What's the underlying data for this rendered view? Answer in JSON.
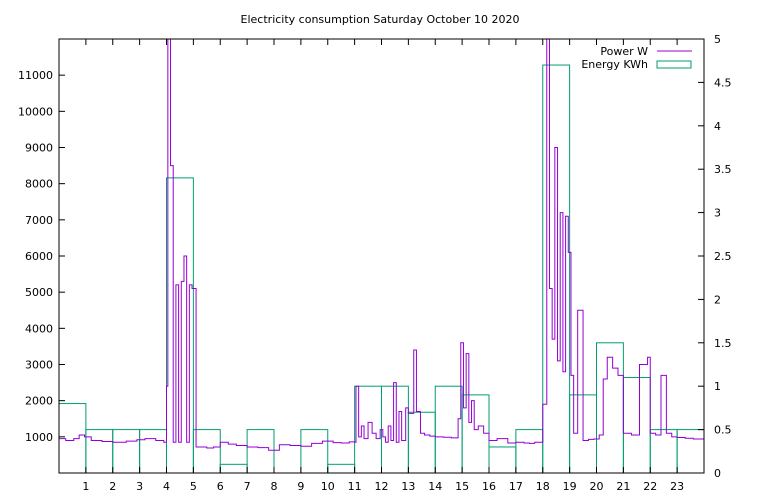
{
  "chart_data": {
    "type": "bar",
    "title": "Electricity consumption Saturday October 10 2020",
    "xlabel": "",
    "ylabel": "",
    "x_ticks": [
      "1",
      "2",
      "3",
      "4",
      "5",
      "6",
      "7",
      "8",
      "9",
      "10",
      "11",
      "12",
      "13",
      "14",
      "15",
      "16",
      "17",
      "18",
      "19",
      "20",
      "21",
      "22",
      "23"
    ],
    "xlim": [
      0,
      24
    ],
    "y_left": {
      "ticks": [
        "1000",
        "2000",
        "3000",
        "4000",
        "5000",
        "6000",
        "7000",
        "8000",
        "9000",
        "10000",
        "11000"
      ],
      "ylim": [
        0,
        12000
      ]
    },
    "y_right": {
      "ticks": [
        "0",
        "0.5",
        "1",
        "1.5",
        "2",
        "2.5",
        "3",
        "3.5",
        "4",
        "4.5",
        "5"
      ],
      "ylim": [
        0,
        5
      ]
    },
    "legend_position": "top-right",
    "colors": {
      "power": "#9400d3",
      "energy": "#009e73"
    },
    "series": [
      {
        "name": "Power W",
        "style": "steps",
        "axis": "left",
        "x": [
          0,
          0.25,
          0.55,
          0.75,
          0.95,
          1.2,
          1.6,
          2.0,
          2.5,
          2.9,
          3.2,
          3.6,
          3.9,
          4.0,
          4.05,
          4.15,
          4.25,
          4.35,
          4.45,
          4.55,
          4.65,
          4.75,
          4.85,
          4.95,
          5.1,
          5.5,
          5.75,
          6.0,
          6.3,
          6.6,
          7.0,
          7.4,
          7.8,
          8.2,
          8.6,
          9.0,
          9.4,
          9.8,
          10.2,
          10.5,
          10.8,
          11.0,
          11.05,
          11.15,
          11.25,
          11.35,
          11.5,
          11.65,
          11.8,
          11.95,
          12.05,
          12.15,
          12.25,
          12.35,
          12.45,
          12.55,
          12.65,
          12.75,
          12.9,
          13.0,
          13.1,
          13.2,
          13.3,
          13.45,
          13.6,
          13.8,
          14.0,
          14.3,
          14.6,
          14.85,
          14.95,
          15.05,
          15.15,
          15.25,
          15.35,
          15.45,
          15.6,
          15.8,
          16.0,
          16.3,
          16.7,
          17.0,
          17.3,
          17.5,
          17.7,
          18.0,
          18.15,
          18.25,
          18.35,
          18.45,
          18.55,
          18.65,
          18.75,
          18.85,
          18.95,
          19.05,
          19.15,
          19.3,
          19.5,
          19.7,
          19.9,
          20.1,
          20.25,
          20.4,
          20.6,
          20.8,
          21.0,
          21.3,
          21.6,
          21.9,
          22.0,
          22.2,
          22.4,
          22.6,
          22.8,
          23.0,
          23.3,
          23.6,
          24.0
        ],
        "values": [
          950,
          900,
          950,
          1050,
          1000,
          900,
          870,
          850,
          880,
          920,
          950,
          900,
          850,
          2400,
          12000,
          8500,
          850,
          5200,
          850,
          5300,
          6000,
          850,
          5200,
          5100,
          720,
          690,
          720,
          850,
          800,
          760,
          720,
          700,
          630,
          780,
          760,
          740,
          820,
          880,
          840,
          830,
          860,
          850,
          2400,
          1000,
          1300,
          950,
          1400,
          1100,
          950,
          1200,
          1000,
          850,
          1300,
          900,
          2500,
          850,
          1700,
          900,
          1800,
          1650,
          1650,
          3400,
          1700,
          1100,
          1050,
          1020,
          1000,
          990,
          970,
          1500,
          3600,
          1800,
          3300,
          1400,
          2000,
          1200,
          1300,
          1100,
          900,
          950,
          830,
          850,
          830,
          820,
          850,
          1900,
          12000,
          5100,
          3700,
          9000,
          3100,
          7200,
          2800,
          7100,
          6100,
          2700,
          1100,
          4500,
          900,
          930,
          940,
          1050,
          2600,
          3200,
          2900,
          2700,
          1100,
          1050,
          3000,
          3200,
          1100,
          1050,
          2700,
          1100,
          1000,
          980,
          960,
          940,
          930
        ]
      },
      {
        "name": "Energy KWh",
        "style": "boxes",
        "axis": "right",
        "values": [
          0.8,
          0.5,
          0.5,
          0.5,
          3.4,
          0.5,
          0.1,
          0.5,
          0,
          0.5,
          0.1,
          1.0,
          1.0,
          0.7,
          1.0,
          0.9,
          0.3,
          0.5,
          4.7,
          0.9,
          1.5,
          1.1,
          0.5,
          0.5
        ]
      }
    ]
  }
}
